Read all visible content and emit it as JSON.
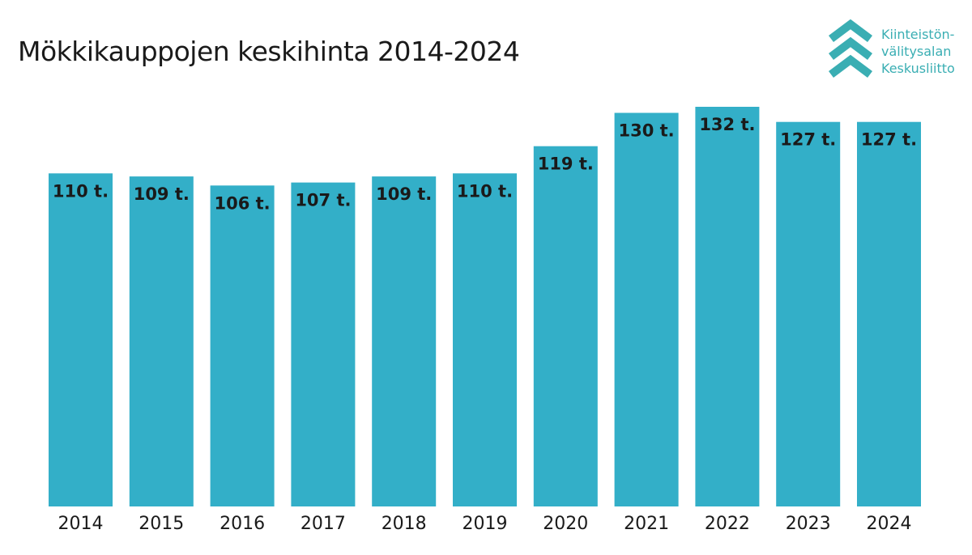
{
  "logo": {
    "line1": "Kiinteistön-",
    "line2": "välitysalan",
    "line3": "Keskusliitto",
    "icon": "chevrons-up-icon",
    "color": "#3aaeb3"
  },
  "chart_data": {
    "type": "bar",
    "title": "Mökkikauppojen keskihinta 2014-2024",
    "xlabel": "",
    "ylabel": "",
    "categories": [
      "2014",
      "2015",
      "2016",
      "2017",
      "2018",
      "2019",
      "2020",
      "2021",
      "2022",
      "2023",
      "2024"
    ],
    "values": [
      110,
      109,
      106,
      107,
      109,
      110,
      119,
      130,
      132,
      127,
      127
    ],
    "data_labels": [
      "110 t.",
      "109 t.",
      "106 t.",
      "107 t.",
      "109 t.",
      "110 t.",
      "119 t.",
      "130 t.",
      "132 t.",
      "127 t.",
      "127 t."
    ],
    "ylim": [
      0,
      132
    ],
    "grid": false,
    "legend": "none",
    "bar_color": "#33afc8"
  }
}
